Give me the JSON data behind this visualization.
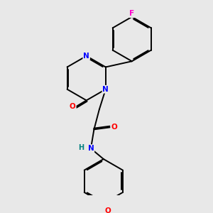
{
  "background_color": "#e8e8e8",
  "bond_color": "#000000",
  "atom_colors": {
    "N": "#0000ff",
    "O": "#ff0000",
    "F": "#ff00cc",
    "H": "#008080",
    "C": "#000000"
  },
  "figsize": [
    3.0,
    3.0
  ],
  "dpi": 100,
  "lw": 1.4,
  "fs": 7.5
}
